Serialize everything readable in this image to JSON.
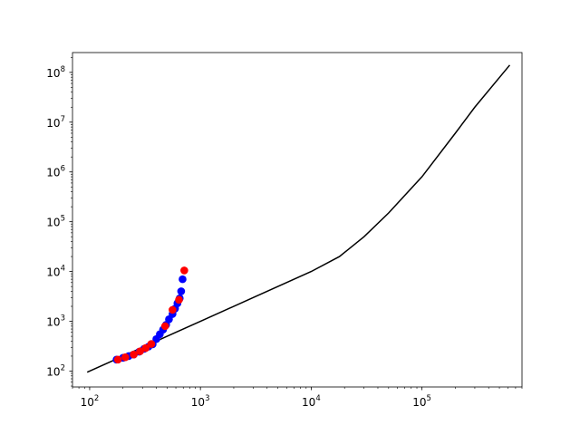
{
  "chart_data": {
    "type": "line",
    "title": "",
    "xlabel": "",
    "ylabel": "",
    "xscale": "log",
    "yscale": "log",
    "xlim": [
      70,
      800000
    ],
    "ylim": [
      48,
      250000000
    ],
    "grid": false,
    "legend": "none",
    "x_ticks": [
      {
        "value": 100,
        "base": "10",
        "exp": "2"
      },
      {
        "value": 1000,
        "base": "10",
        "exp": "3"
      },
      {
        "value": 10000,
        "base": "10",
        "exp": "4"
      },
      {
        "value": 100000,
        "base": "10",
        "exp": "5"
      }
    ],
    "y_ticks": [
      {
        "value": 100,
        "base": "10",
        "exp": "2"
      },
      {
        "value": 1000,
        "base": "10",
        "exp": "3"
      },
      {
        "value": 10000,
        "base": "10",
        "exp": "4"
      },
      {
        "value": 100000,
        "base": "10",
        "exp": "5"
      },
      {
        "value": 1000000,
        "base": "10",
        "exp": "6"
      },
      {
        "value": 10000000,
        "base": "10",
        "exp": "7"
      },
      {
        "value": 100000000,
        "base": "10",
        "exp": "8"
      }
    ],
    "series": [
      {
        "kind": "line",
        "color": "#000000",
        "points": [
          [
            95,
            95
          ],
          [
            150,
            150
          ],
          [
            300,
            300
          ],
          [
            600,
            600
          ],
          [
            1000,
            1000
          ],
          [
            3000,
            3000
          ],
          [
            10000,
            10000
          ],
          [
            18000,
            20000
          ],
          [
            30000,
            50000
          ],
          [
            50000,
            150000
          ],
          [
            100000,
            800000
          ],
          [
            200000,
            6000000
          ],
          [
            300000,
            20000000
          ],
          [
            620000,
            140000000
          ]
        ]
      },
      {
        "kind": "scatter",
        "color": "#0000ff",
        "points": [
          [
            175,
            170
          ],
          [
            200,
            185
          ],
          [
            225,
            200
          ],
          [
            250,
            215
          ],
          [
            280,
            245
          ],
          [
            310,
            280
          ],
          [
            340,
            310
          ],
          [
            370,
            345
          ],
          [
            400,
            440
          ],
          [
            430,
            550
          ],
          [
            460,
            680
          ],
          [
            490,
            850
          ],
          [
            520,
            1100
          ],
          [
            560,
            1400
          ],
          [
            590,
            1800
          ],
          [
            620,
            2300
          ],
          [
            650,
            2900
          ],
          [
            670,
            4000
          ],
          [
            690,
            7000
          ]
        ]
      },
      {
        "kind": "scatter",
        "color": "#ff0000",
        "points": [
          [
            180,
            170
          ],
          [
            210,
            190
          ],
          [
            250,
            215
          ],
          [
            285,
            250
          ],
          [
            320,
            290
          ],
          [
            360,
            350
          ],
          [
            480,
            800
          ],
          [
            560,
            1700
          ],
          [
            640,
            2700
          ],
          [
            715,
            10500
          ]
        ]
      }
    ]
  }
}
